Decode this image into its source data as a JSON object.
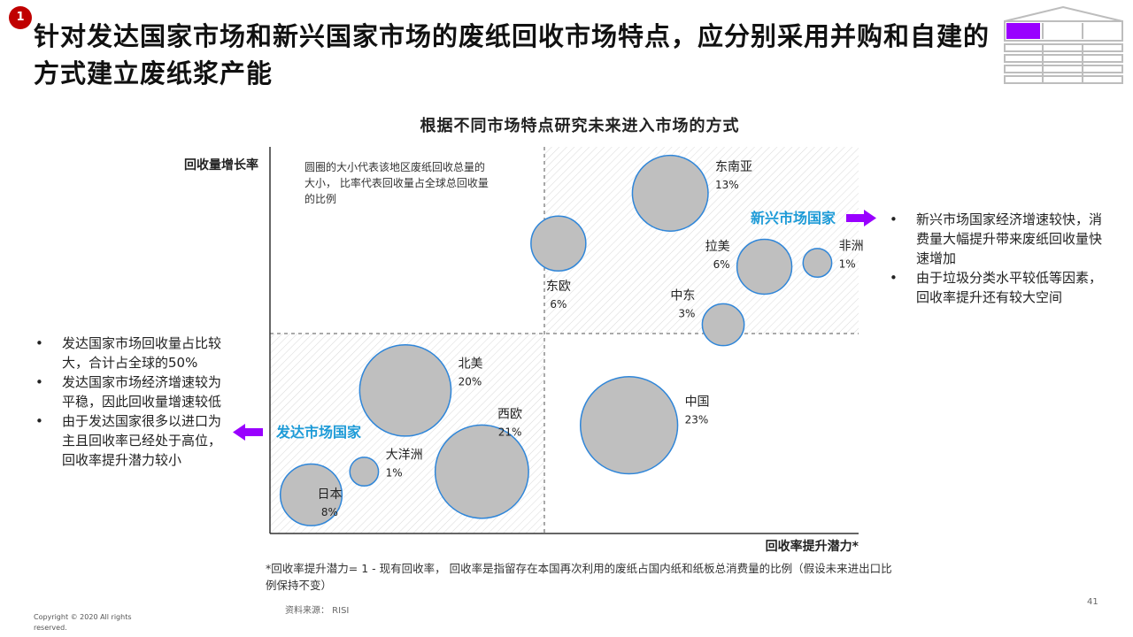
{
  "badge": "1",
  "title": "针对发达国家市场和新兴国家市场的废纸回收市场特点，应分别采用并购和自建的方式建立废纸浆产能",
  "colors": {
    "accent_purple": "#9900ff",
    "accent_blue": "#1e9bd7",
    "bubble_fill": "#bfbfbf",
    "bubble_stroke": "#2f86d9",
    "badge_red": "#c00000"
  },
  "chart_data": {
    "type": "scatter",
    "title": "根据不同市场特点研究未来进入市场的方式",
    "ylabel": "回收量增长率",
    "xlabel": "回收率提升潜力*",
    "legend_note": "圆圈的大小代表该地区废纸回收总量的大小， 比率代表回收量占全球总回收量的比例",
    "quadrant_labels": {
      "emerging": "新兴市场国家",
      "developed": "发达市场国家"
    },
    "axis_range": {
      "x": [
        0,
        10
      ],
      "y": [
        0,
        10
      ]
    },
    "points": [
      {
        "name": "东南亚",
        "share": "13%",
        "x": 6.8,
        "y": 8.8,
        "size": 13
      },
      {
        "name": "东欧",
        "share": "6%",
        "x": 4.9,
        "y": 7.5,
        "size": 6
      },
      {
        "name": "拉美",
        "share": "6%",
        "x": 8.4,
        "y": 6.9,
        "size": 6
      },
      {
        "name": "非洲",
        "share": "1%",
        "x": 9.3,
        "y": 7.0,
        "size": 1
      },
      {
        "name": "中东",
        "share": "3%",
        "x": 7.7,
        "y": 5.4,
        "size": 3
      },
      {
        "name": "北美",
        "share": "20%",
        "x": 2.3,
        "y": 3.7,
        "size": 20
      },
      {
        "name": "西欧",
        "share": "21%",
        "x": 3.6,
        "y": 1.6,
        "size": 21
      },
      {
        "name": "中国",
        "share": "23%",
        "x": 6.1,
        "y": 2.8,
        "size": 23
      },
      {
        "name": "大洋洲",
        "share": "1%",
        "x": 1.6,
        "y": 1.6,
        "size": 1
      },
      {
        "name": "日本",
        "share": "8%",
        "x": 0.7,
        "y": 1.0,
        "size": 8
      }
    ]
  },
  "right_bullets": [
    "新兴市场国家经济增速较快，消费量大幅提升带来废纸回收量快速增加",
    "由于垃圾分类水平较低等因素，回收率提升还有较大空间"
  ],
  "left_bullets": [
    "发达国家市场回收量占比较大，合计占全球的50%",
    "发达国家市场经济增速较为平稳，因此回收量增速较低",
    "由于发达国家很多以进口为主且回收率已经处于高位，回收率提升潜力较小"
  ],
  "footnote": "*回收率提升潜力= 1 - 现有回收率， 回收率是指留存在本国再次利用的废纸占国内纸和纸板总消费量的比例（假设未来进出口比例保持不变）",
  "source": "资料来源： RISI",
  "copyright": "Copyright © 2020 All rights reserved.",
  "page_number": "41"
}
